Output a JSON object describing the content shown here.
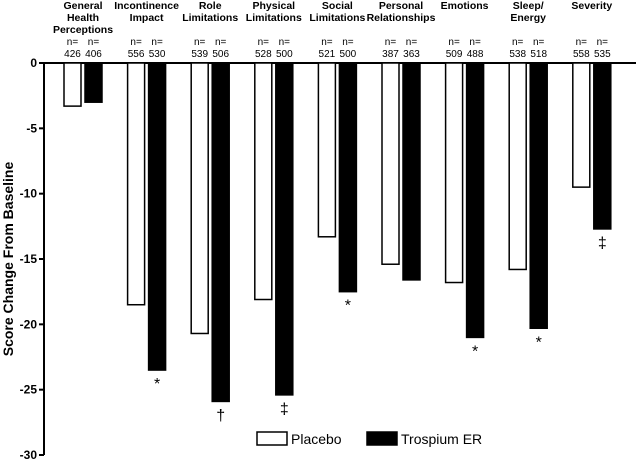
{
  "chart_data": {
    "type": "bar",
    "title": "",
    "xlabel": "",
    "ylabel": "Score Change From Baseline",
    "ylim": [
      -30,
      0
    ],
    "yticks": [
      0,
      -5,
      -10,
      -15,
      -20,
      -25,
      -30
    ],
    "grid": false,
    "legend_position": "bottom-right",
    "n_prefix": "n=",
    "categories": [
      [
        "General",
        "Health",
        "Perceptions"
      ],
      [
        "Incontinence",
        "Impact"
      ],
      [
        "Role",
        "Limitations"
      ],
      [
        "Physical",
        "Limitations"
      ],
      [
        "Social",
        "Limitations"
      ],
      [
        "Personal",
        "Relationships"
      ],
      [
        "Emotions"
      ],
      [
        "Sleep/",
        "Energy"
      ],
      [
        "Severity"
      ]
    ],
    "series": [
      {
        "name": "Placebo",
        "color": "#ffffff",
        "values": [
          -3.3,
          -18.5,
          -20.7,
          -18.1,
          -13.3,
          -15.4,
          -16.8,
          -15.8,
          -9.5
        ],
        "n": [
          426,
          556,
          539,
          528,
          521,
          387,
          509,
          538,
          558
        ]
      },
      {
        "name": "Trospium ER",
        "color": "#000000",
        "values": [
          -3.0,
          -23.5,
          -25.9,
          -25.4,
          -17.5,
          -16.6,
          -21.0,
          -20.3,
          -12.7
        ],
        "n": [
          406,
          530,
          506,
          500,
          500,
          363,
          488,
          518,
          535
        ]
      }
    ],
    "significance_markers": [
      "",
      "*",
      "†",
      "‡",
      "*",
      "",
      "*",
      "*",
      "‡"
    ]
  }
}
